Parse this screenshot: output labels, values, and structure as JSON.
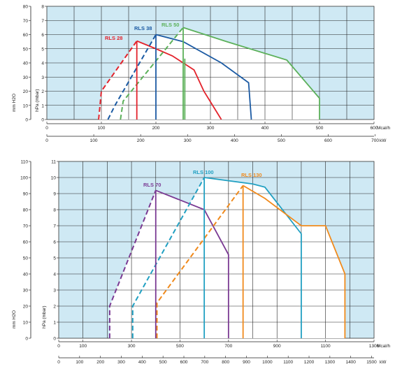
{
  "chart_data": [
    {
      "type": "line",
      "title": "",
      "background_color": "#cfe9f4",
      "plot_fill": "#ffffff",
      "y_axis_outer": {
        "label": "mm H2O",
        "ticks": [
          "0",
          "10",
          "20",
          "30",
          "40",
          "50",
          "60",
          "70",
          "80"
        ]
      },
      "y_axis_inner": {
        "label": "hPa (mbar)",
        "ticks": [
          "0",
          "1",
          "2",
          "3",
          "4",
          "5",
          "6",
          "7",
          "8"
        ],
        "ylim": [
          0,
          8
        ]
      },
      "x_axis_mcal": {
        "unit": "Mcal/h",
        "ticks": [
          "0",
          "100",
          "200",
          "300",
          "400",
          "500",
          "600"
        ],
        "xlim": [
          0,
          600
        ]
      },
      "x_axis_kw": {
        "unit": "kW",
        "ticks": [
          "0",
          "100",
          "200",
          "300",
          "400",
          "500",
          "600",
          "700"
        ]
      },
      "series": [
        {
          "name": "RLS 28",
          "color": "#e3222b",
          "x": [
            95,
            100,
            165,
            200,
            230,
            270,
            288,
            320
          ],
          "y": [
            0,
            2.0,
            5.55,
            5.0,
            4.5,
            3.5,
            2.0,
            0
          ],
          "dashed_upto": 2
        },
        {
          "name": "RLS 38",
          "color": "#1b5aa3",
          "x": [
            112,
            125,
            200,
            250,
            320,
            370,
            375
          ],
          "y": [
            0,
            1.0,
            6.0,
            5.5,
            4.0,
            2.6,
            0
          ],
          "dashed_upto": 2
        },
        {
          "name": "RLS 50",
          "color": "#5cb05a",
          "x": [
            135,
            140,
            250,
            330,
            440,
            500,
            500
          ],
          "y": [
            0,
            1.3,
            6.5,
            5.5,
            4.2,
            1.5,
            0
          ],
          "dashed_upto": 2
        }
      ],
      "min_verticals": [
        {
          "color": "#e3222b",
          "x": 165,
          "y": 5.55
        },
        {
          "color": "#1b5aa3",
          "x": 200,
          "y": 6.0
        },
        {
          "color": "#5cb05a",
          "x": 250,
          "y": 6.5
        },
        {
          "color": "#5cb05a",
          "x": 253,
          "y": 4.3
        }
      ]
    },
    {
      "type": "line",
      "title": "",
      "background_color": "#cfe9f4",
      "plot_fill": "#ffffff",
      "y_axis_outer": {
        "label": "mm H2O",
        "ticks": [
          "0",
          "10",
          "20",
          "30",
          "40",
          "50",
          "60",
          "70",
          "80",
          "90",
          "100",
          "110"
        ]
      },
      "y_axis_inner": {
        "label": "hPa (mbar)",
        "ticks": [
          "0",
          "1",
          "2",
          "3",
          "4",
          "5",
          "6",
          "7",
          "8",
          "9",
          "10",
          "11"
        ],
        "ylim": [
          0,
          11
        ]
      },
      "x_axis_mcal": {
        "unit": "Mcal/h",
        "ticks": [
          "0",
          "100",
          "300",
          "500",
          "700",
          "900",
          "1100",
          "1300"
        ],
        "tick_values": [
          0,
          100,
          300,
          500,
          700,
          900,
          1100,
          1300
        ],
        "xlim": [
          0,
          1300
        ]
      },
      "x_axis_kw": {
        "unit": "kW",
        "ticks": [
          "0",
          "100",
          "200",
          "300",
          "400",
          "500",
          "600",
          "700",
          "800",
          "900",
          "1000",
          "1100",
          "1200",
          "1300",
          "1400",
          "1500"
        ]
      },
      "series": [
        {
          "name": "RLS 70",
          "color": "#7a3a93",
          "x": [
            210,
            210,
            400,
            600,
            700,
            700
          ],
          "y": [
            0,
            2.0,
            9.2,
            8.0,
            5.2,
            0
          ],
          "dashed_upto": 2
        },
        {
          "name": "RLS 100",
          "color": "#21a0c2",
          "x": [
            305,
            305,
            600,
            800,
            850,
            1000,
            1000
          ],
          "y": [
            0,
            2.0,
            10.0,
            9.6,
            9.4,
            6.5,
            0
          ],
          "dashed_upto": 2
        },
        {
          "name": "RLS 130",
          "color": "#f08a1c",
          "x": [
            405,
            405,
            760,
            850,
            1000,
            1100,
            1180,
            1180
          ],
          "y": [
            0,
            2.2,
            9.5,
            8.7,
            7.0,
            7.0,
            4.0,
            0
          ],
          "dashed_upto": 2
        }
      ],
      "min_verticals": [
        {
          "color": "#7a3a93",
          "x": 400,
          "y": 9.2
        },
        {
          "color": "#21a0c2",
          "x": 600,
          "y": 10.0
        },
        {
          "color": "#f08a1c",
          "x": 760,
          "y": 9.5
        }
      ]
    }
  ]
}
